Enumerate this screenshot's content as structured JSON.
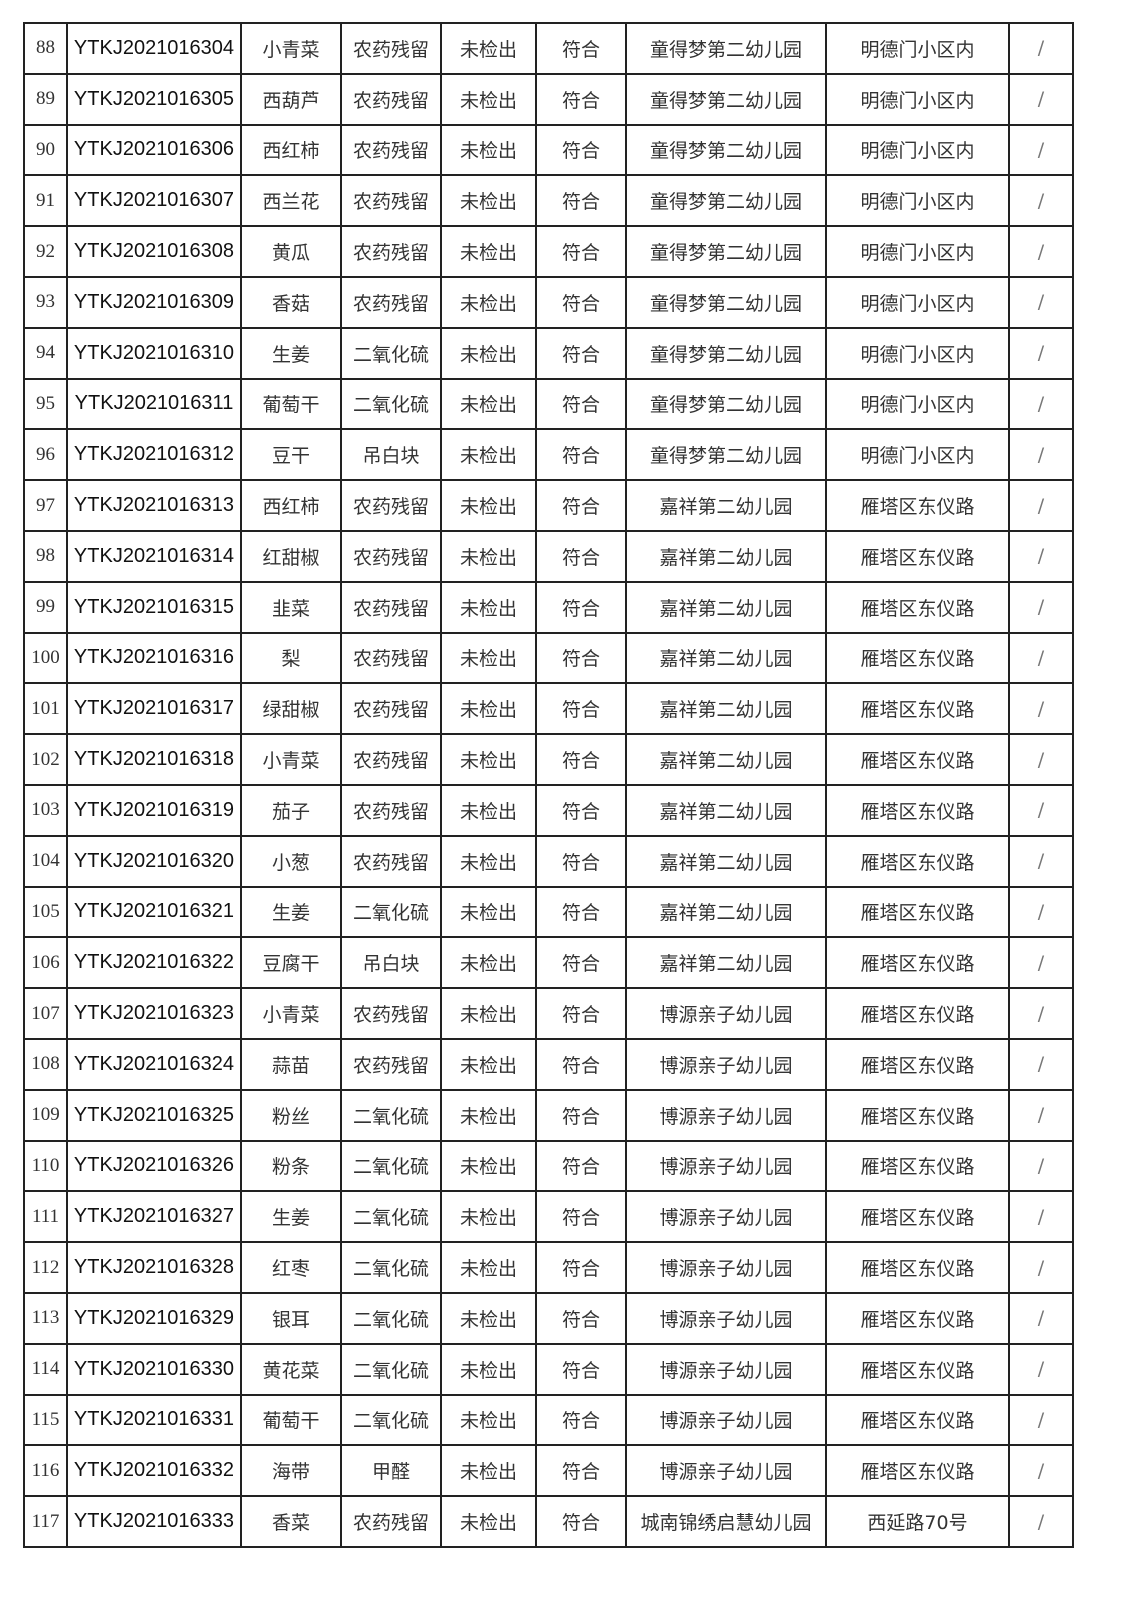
{
  "table": {
    "rows": [
      [
        "88",
        "YTKJ2021016304",
        "小青菜",
        "农药残留",
        "未检出",
        "符合",
        "童得梦第二幼儿园",
        "明德门小区内",
        "/"
      ],
      [
        "89",
        "YTKJ2021016305",
        "西葫芦",
        "农药残留",
        "未检出",
        "符合",
        "童得梦第二幼儿园",
        "明德门小区内",
        "/"
      ],
      [
        "90",
        "YTKJ2021016306",
        "西红柿",
        "农药残留",
        "未检出",
        "符合",
        "童得梦第二幼儿园",
        "明德门小区内",
        "/"
      ],
      [
        "91",
        "YTKJ2021016307",
        "西兰花",
        "农药残留",
        "未检出",
        "符合",
        "童得梦第二幼儿园",
        "明德门小区内",
        "/"
      ],
      [
        "92",
        "YTKJ2021016308",
        "黄瓜",
        "农药残留",
        "未检出",
        "符合",
        "童得梦第二幼儿园",
        "明德门小区内",
        "/"
      ],
      [
        "93",
        "YTKJ2021016309",
        "香菇",
        "农药残留",
        "未检出",
        "符合",
        "童得梦第二幼儿园",
        "明德门小区内",
        "/"
      ],
      [
        "94",
        "YTKJ2021016310",
        "生姜",
        "二氧化硫",
        "未检出",
        "符合",
        "童得梦第二幼儿园",
        "明德门小区内",
        "/"
      ],
      [
        "95",
        "YTKJ2021016311",
        "葡萄干",
        "二氧化硫",
        "未检出",
        "符合",
        "童得梦第二幼儿园",
        "明德门小区内",
        "/"
      ],
      [
        "96",
        "YTKJ2021016312",
        "豆干",
        "吊白块",
        "未检出",
        "符合",
        "童得梦第二幼儿园",
        "明德门小区内",
        "/"
      ],
      [
        "97",
        "YTKJ2021016313",
        "西红柿",
        "农药残留",
        "未检出",
        "符合",
        "嘉祥第二幼儿园",
        "雁塔区东仪路",
        "/"
      ],
      [
        "98",
        "YTKJ2021016314",
        "红甜椒",
        "农药残留",
        "未检出",
        "符合",
        "嘉祥第二幼儿园",
        "雁塔区东仪路",
        "/"
      ],
      [
        "99",
        "YTKJ2021016315",
        "韭菜",
        "农药残留",
        "未检出",
        "符合",
        "嘉祥第二幼儿园",
        "雁塔区东仪路",
        "/"
      ],
      [
        "100",
        "YTKJ2021016316",
        "梨",
        "农药残留",
        "未检出",
        "符合",
        "嘉祥第二幼儿园",
        "雁塔区东仪路",
        "/"
      ],
      [
        "101",
        "YTKJ2021016317",
        "绿甜椒",
        "农药残留",
        "未检出",
        "符合",
        "嘉祥第二幼儿园",
        "雁塔区东仪路",
        "/"
      ],
      [
        "102",
        "YTKJ2021016318",
        "小青菜",
        "农药残留",
        "未检出",
        "符合",
        "嘉祥第二幼儿园",
        "雁塔区东仪路",
        "/"
      ],
      [
        "103",
        "YTKJ2021016319",
        "茄子",
        "农药残留",
        "未检出",
        "符合",
        "嘉祥第二幼儿园",
        "雁塔区东仪路",
        "/"
      ],
      [
        "104",
        "YTKJ2021016320",
        "小葱",
        "农药残留",
        "未检出",
        "符合",
        "嘉祥第二幼儿园",
        "雁塔区东仪路",
        "/"
      ],
      [
        "105",
        "YTKJ2021016321",
        "生姜",
        "二氧化硫",
        "未检出",
        "符合",
        "嘉祥第二幼儿园",
        "雁塔区东仪路",
        "/"
      ],
      [
        "106",
        "YTKJ2021016322",
        "豆腐干",
        "吊白块",
        "未检出",
        "符合",
        "嘉祥第二幼儿园",
        "雁塔区东仪路",
        "/"
      ],
      [
        "107",
        "YTKJ2021016323",
        "小青菜",
        "农药残留",
        "未检出",
        "符合",
        "博源亲子幼儿园",
        "雁塔区东仪路",
        "/"
      ],
      [
        "108",
        "YTKJ2021016324",
        "蒜苗",
        "农药残留",
        "未检出",
        "符合",
        "博源亲子幼儿园",
        "雁塔区东仪路",
        "/"
      ],
      [
        "109",
        "YTKJ2021016325",
        "粉丝",
        "二氧化硫",
        "未检出",
        "符合",
        "博源亲子幼儿园",
        "雁塔区东仪路",
        "/"
      ],
      [
        "110",
        "YTKJ2021016326",
        "粉条",
        "二氧化硫",
        "未检出",
        "符合",
        "博源亲子幼儿园",
        "雁塔区东仪路",
        "/"
      ],
      [
        "111",
        "YTKJ2021016327",
        "生姜",
        "二氧化硫",
        "未检出",
        "符合",
        "博源亲子幼儿园",
        "雁塔区东仪路",
        "/"
      ],
      [
        "112",
        "YTKJ2021016328",
        "红枣",
        "二氧化硫",
        "未检出",
        "符合",
        "博源亲子幼儿园",
        "雁塔区东仪路",
        "/"
      ],
      [
        "113",
        "YTKJ2021016329",
        "银耳",
        "二氧化硫",
        "未检出",
        "符合",
        "博源亲子幼儿园",
        "雁塔区东仪路",
        "/"
      ],
      [
        "114",
        "YTKJ2021016330",
        "黄花菜",
        "二氧化硫",
        "未检出",
        "符合",
        "博源亲子幼儿园",
        "雁塔区东仪路",
        "/"
      ],
      [
        "115",
        "YTKJ2021016331",
        "葡萄干",
        "二氧化硫",
        "未检出",
        "符合",
        "博源亲子幼儿园",
        "雁塔区东仪路",
        "/"
      ],
      [
        "116",
        "YTKJ2021016332",
        "海带",
        "甲醛",
        "未检出",
        "符合",
        "博源亲子幼儿园",
        "雁塔区东仪路",
        "/"
      ],
      [
        "117",
        "YTKJ2021016333",
        "香菜",
        "农药残留",
        "未检出",
        "符合",
        "城南锦绣启慧幼儿园",
        "西延路70号",
        "/"
      ]
    ]
  }
}
